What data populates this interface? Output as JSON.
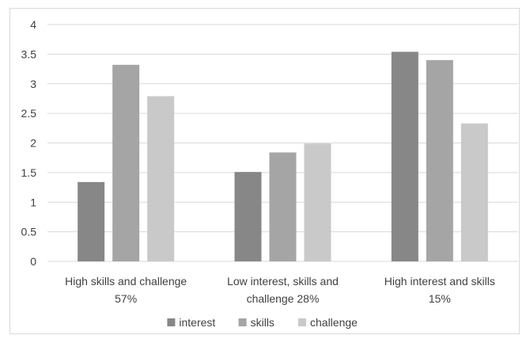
{
  "chart_data": {
    "type": "bar",
    "categories": [
      [
        "High skills and challenge",
        "57%"
      ],
      [
        "Low interest, skills and",
        "challenge 28%"
      ],
      [
        "High interest and skills",
        "15%"
      ]
    ],
    "series": [
      {
        "name": "interest",
        "values": [
          1.34,
          1.51,
          3.54
        ],
        "color": "#878787"
      },
      {
        "name": "skills",
        "values": [
          3.32,
          1.84,
          3.4
        ],
        "color": "#a5a5a5"
      },
      {
        "name": "challenge",
        "values": [
          2.79,
          1.99,
          2.33
        ],
        "color": "#c9c9c9"
      }
    ],
    "ylim": [
      0,
      4
    ],
    "yticks": [
      "0",
      "0.5",
      "1",
      "1.5",
      "2",
      "2.5",
      "3",
      "3.5",
      "4"
    ],
    "grid": true,
    "legend_position": "bottom",
    "title": "",
    "xlabel": "",
    "ylabel": ""
  }
}
